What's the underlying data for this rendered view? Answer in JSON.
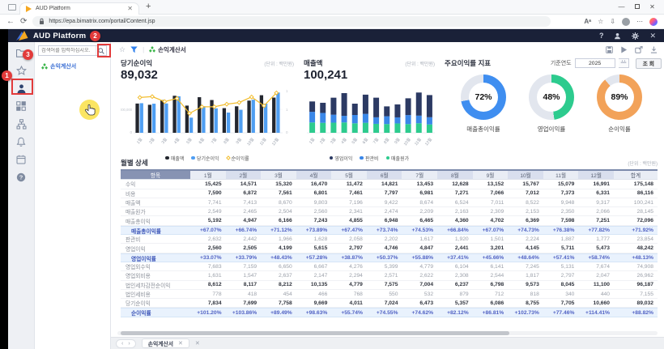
{
  "browser": {
    "tab_title": "AUD Platform",
    "url": "https://epa.bimatrix.com/portal/Content.jsp"
  },
  "app": {
    "title": "AUD Platform"
  },
  "annotations": {
    "badge1": "1",
    "badge2": "2",
    "badge3": "3"
  },
  "sidebar": {
    "search_placeholder": "검색어를 입력하십시오.",
    "tree_item": "손익계산서"
  },
  "toolbar": {
    "breadcrumb": "손익계산서"
  },
  "filter": {
    "year_label": "기준연도",
    "year_value": "2025",
    "search_button": "조 회"
  },
  "chart_data": [
    {
      "id": "net-income",
      "type": "bar",
      "title": "당기순이익",
      "unit": "(단위 : 백만원)",
      "big_number": "89,032",
      "categories": [
        "1월",
        "2월",
        "3월",
        "4월",
        "5월",
        "6월",
        "7월",
        "8월",
        "9월",
        "10월",
        "11월",
        "12월"
      ],
      "series": [
        {
          "name": "매출액",
          "type": "bar",
          "color": "#23262e",
          "values": [
            7741,
            7413,
            8670,
            9803,
            7196,
            9422,
            8674,
            6524,
            7011,
            8522,
            9948,
            9317
          ]
        },
        {
          "name": "당기순이익",
          "type": "bar",
          "color": "#4f9ef2",
          "values": [
            7834,
            7699,
            7758,
            9669,
            4011,
            7024,
            6473,
            5357,
            6086,
            8755,
            7705,
            10660
          ]
        },
        {
          "name": "순이익률",
          "type": "line",
          "color": "#f2bd2e",
          "values": [
            101.2,
            103.86,
            89.49,
            98.63,
            55.74,
            74.55,
            74.62,
            82.12,
            86.81,
            102.73,
            77.46,
            114.41
          ]
        }
      ],
      "y_left_ticks": [
        "6,000,000,000",
        "0"
      ],
      "y_right_ticks": [
        "1",
        "1",
        "0"
      ]
    },
    {
      "id": "revenue",
      "type": "bar",
      "title": "매출액",
      "unit": "(단위 : 백만원)",
      "big_number": "100,241",
      "categories": [
        "1월",
        "2월",
        "3월",
        "4월",
        "5월",
        "6월",
        "7월",
        "8월",
        "9월",
        "10월",
        "11월",
        "12월"
      ],
      "series": [
        {
          "name": "영업이익",
          "color": "#2c3a63",
          "values": [
            2560,
            2505,
            4199,
            5615,
            2797,
            4746,
            4847,
            2441,
            3201,
            4145,
            5711,
            5473
          ]
        },
        {
          "name": "판관비",
          "color": "#3a87e8",
          "values": [
            2632,
            2442,
            1966,
            1628,
            2058,
            2202,
            1617,
            1920,
            1501,
            2224,
            1887,
            1777
          ]
        },
        {
          "name": "매출원가",
          "color": "#2dcb8e",
          "values": [
            2549,
            2465,
            2504,
            2560,
            2341,
            2474,
            2209,
            2163,
            2309,
            2153,
            2350,
            2066
          ]
        }
      ]
    },
    {
      "id": "kpi",
      "type": "pie",
      "title": "주요이익률 지표",
      "donuts": [
        {
          "label": "매출총이익률",
          "value": 72,
          "display": "72%",
          "color": "#3f8ef0"
        },
        {
          "label": "영업이익률",
          "value": 48,
          "display": "48%",
          "color": "#2dcb8e"
        },
        {
          "label": "순이익률",
          "value": 89,
          "display": "89%",
          "color": "#f2a259"
        }
      ]
    }
  ],
  "table": {
    "title": "월별 상세",
    "unit": "(단위 : 백만원)",
    "col_header": "항목",
    "months": [
      "1월",
      "2월",
      "3월",
      "4월",
      "5월",
      "6월",
      "7월",
      "8월",
      "9월",
      "10월",
      "11월",
      "12월"
    ],
    "total_label": "합계",
    "rows": [
      {
        "label": "수익",
        "style": "bold",
        "values": [
          "15,425",
          "14,571",
          "15,320",
          "16,470",
          "11,472",
          "14,821",
          "13,453",
          "12,628",
          "13,152",
          "15,767",
          "15,079",
          "16,991"
        ],
        "total": "175,148"
      },
      {
        "label": "비용",
        "style": "bold",
        "values": [
          "7,590",
          "6,872",
          "7,561",
          "6,801",
          "7,461",
          "7,797",
          "6,981",
          "7,271",
          "7,066",
          "7,012",
          "7,373",
          "6,331"
        ],
        "total": "86,116"
      },
      {
        "label": "매출액",
        "style": "plain",
        "values": [
          "7,741",
          "7,413",
          "8,670",
          "9,803",
          "7,196",
          "9,422",
          "8,674",
          "6,524",
          "7,011",
          "8,522",
          "9,948",
          "9,317"
        ],
        "total": "100,241"
      },
      {
        "label": "매출원가",
        "style": "plain",
        "values": [
          "2,549",
          "2,465",
          "2,504",
          "2,560",
          "2,341",
          "2,474",
          "2,209",
          "2,163",
          "2,309",
          "2,153",
          "2,350",
          "2,066"
        ],
        "total": "28,145"
      },
      {
        "label": "매출총이익",
        "style": "bold",
        "values": [
          "5,192",
          "4,947",
          "6,166",
          "7,243",
          "4,855",
          "6,948",
          "6,465",
          "4,360",
          "4,702",
          "6,369",
          "7,598",
          "7,251"
        ],
        "total": "72,096"
      },
      {
        "label": "매출총이익률",
        "style": "rate",
        "values": [
          "+67.07%",
          "+66.74%",
          "+71.12%",
          "+73.89%",
          "+67.47%",
          "+73.74%",
          "+74.53%",
          "+66.84%",
          "+67.07%",
          "+74.73%",
          "+76.38%",
          "+77.82%"
        ],
        "total": "+71.92%"
      },
      {
        "label": "판관비",
        "style": "plain",
        "values": [
          "2,632",
          "2,442",
          "1,966",
          "1,628",
          "2,058",
          "2,202",
          "1,617",
          "1,920",
          "1,501",
          "2,224",
          "1,887",
          "1,777"
        ],
        "total": "23,854"
      },
      {
        "label": "영업이익",
        "style": "bold",
        "values": [
          "2,560",
          "2,505",
          "4,199",
          "5,615",
          "2,797",
          "4,746",
          "4,847",
          "2,441",
          "3,201",
          "4,145",
          "5,711",
          "5,473"
        ],
        "total": "48,242"
      },
      {
        "label": "영업이익률",
        "style": "rate",
        "values": [
          "+33.07%",
          "+33.79%",
          "+48.43%",
          "+57.28%",
          "+38.87%",
          "+50.37%",
          "+55.88%",
          "+37.41%",
          "+45.66%",
          "+48.64%",
          "+57.41%",
          "+58.74%"
        ],
        "total": "+48.13%"
      },
      {
        "label": "영업외수익",
        "style": "plain",
        "values": [
          "7,683",
          "7,159",
          "6,650",
          "6,667",
          "4,276",
          "5,399",
          "4,779",
          "6,104",
          "6,141",
          "7,245",
          "5,131",
          "7,674"
        ],
        "total": "74,908"
      },
      {
        "label": "영업외비용",
        "style": "plain",
        "values": [
          "1,631",
          "1,547",
          "2,637",
          "2,147",
          "2,294",
          "2,571",
          "2,622",
          "2,308",
          "2,544",
          "1,817",
          "2,797",
          "2,047"
        ],
        "total": "26,962"
      },
      {
        "label": "법인세차감전순이익",
        "style": "bold",
        "values": [
          "8,612",
          "8,117",
          "8,212",
          "10,135",
          "4,779",
          "7,575",
          "7,004",
          "6,237",
          "6,798",
          "9,573",
          "8,045",
          "11,100"
        ],
        "total": "96,187"
      },
      {
        "label": "법인세비용",
        "style": "plain",
        "values": [
          "778",
          "418",
          "454",
          "466",
          "768",
          "550",
          "532",
          "879",
          "712",
          "818",
          "340",
          "440"
        ],
        "total": "7,155"
      },
      {
        "label": "당기순이익",
        "style": "bold",
        "values": [
          "7,834",
          "7,699",
          "7,758",
          "9,669",
          "4,011",
          "7,024",
          "6,473",
          "5,357",
          "6,086",
          "8,755",
          "7,705",
          "10,660"
        ],
        "total": "89,032"
      },
      {
        "label": "순이익률",
        "style": "rate",
        "values": [
          "+101.20%",
          "+103.86%",
          "+89.49%",
          "+98.63%",
          "+55.74%",
          "+74.55%",
          "+74.62%",
          "+82.12%",
          "+86.81%",
          "+102.73%",
          "+77.46%",
          "+114.41%"
        ],
        "total": "+88.82%"
      }
    ]
  },
  "bottom": {
    "tab": "손익계산서"
  }
}
